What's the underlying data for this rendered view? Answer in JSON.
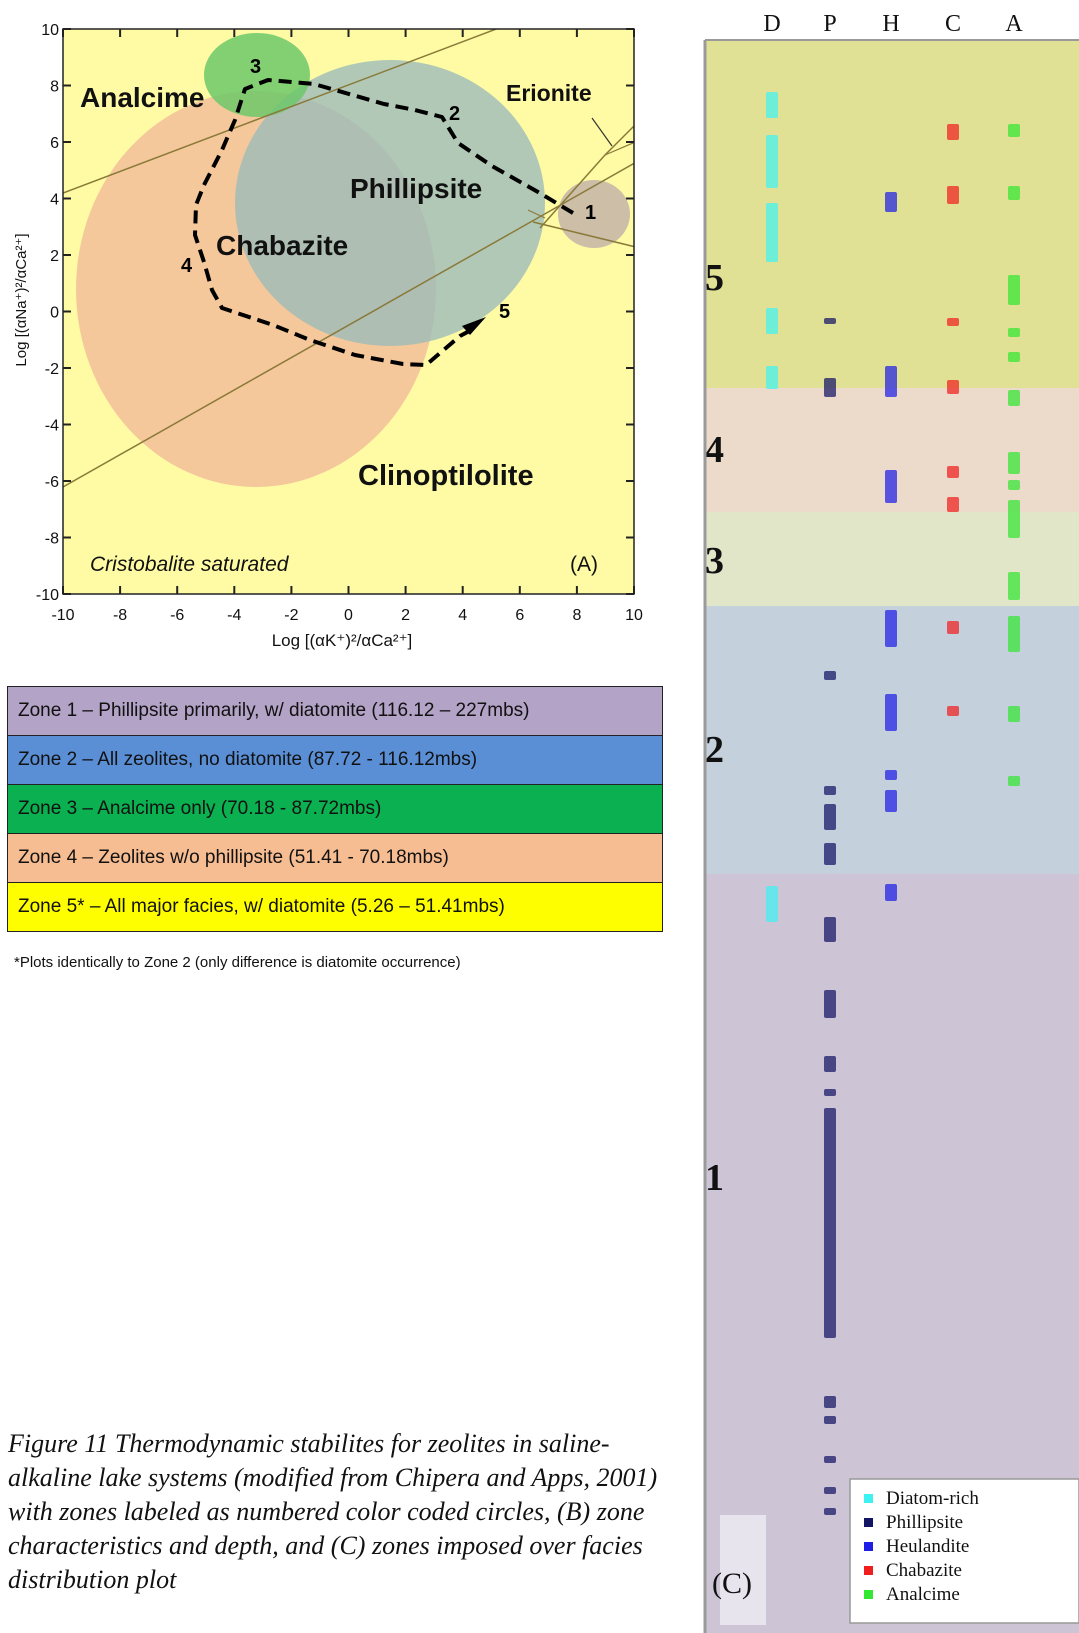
{
  "panel_a": {
    "x_axis_label": "Log [(αK⁺)²/αCa²⁺]",
    "y_axis_label": "Log [(αNa⁺)²/αCa²⁺]",
    "x_ticks": [
      "-10",
      "-8",
      "-6",
      "-4",
      "-2",
      "0",
      "2",
      "4",
      "6",
      "8",
      "10"
    ],
    "y_ticks": [
      "10",
      "8",
      "6",
      "4",
      "2",
      "0",
      "-2",
      "-4",
      "-6",
      "-8",
      "-10"
    ],
    "field_labels": {
      "analcime": "Analcime",
      "erionite": "Erionite",
      "phillipsite": "Phillipsite",
      "chabazite": "Chabazite",
      "clinoptilolite": "Clinoptilolite"
    },
    "saturation_label": "Cristobalite saturated",
    "panel_label": "(A)",
    "path_markers": [
      "1",
      "2",
      "3",
      "4",
      "5"
    ],
    "colors": {
      "background": "#fefba4",
      "analcime_circle": "#6cc86a",
      "phillipsite_circle": "#9fbcb8",
      "chabazite_circle": "#f5c89b",
      "erionite_circle": "#cdbea8",
      "boundary_line": "#8a7a3a"
    }
  },
  "zone_table": {
    "rows": [
      {
        "text": "Zone 1 – Phillipsite primarily, w/ diatomite (116.12 – 227mbs)",
        "color": "#b3a3c6"
      },
      {
        "text": "Zone 2 – All zeolites, no diatomite (87.72 - 116.12mbs)",
        "color": "#5a8fd6"
      },
      {
        "text": "Zone 3 – Analcime only (70.18 - 87.72mbs)",
        "color": "#0bb050"
      },
      {
        "text": "Zone 4 – Zeolites w/o phillipsite (51.41 - 70.18mbs)",
        "color": "#f7bd92"
      },
      {
        "text": "Zone 5* – All major facies, w/ diatomite (5.26 – 51.41mbs)",
        "color": "#fefe00"
      }
    ],
    "footnote": "*Plots identically to Zone 2 (only difference is diatomite occurrence)"
  },
  "caption": "Figure 11 Thermodynamic stabilites for zeolites in saline-alkaline lake systems (modified from Chipera and Apps, 2001) with zones labeled as numbered color coded circles, (B) zone characteristics and depth, and (C) zones imposed over facies distribution plot",
  "panel_c": {
    "columns": [
      "D",
      "P",
      "H",
      "C",
      "A"
    ],
    "zones": [
      {
        "label": "5",
        "color": "#e1e196"
      },
      {
        "label": "4",
        "color": "#ecdbca"
      },
      {
        "label": "3",
        "color": "#e2e6c8"
      },
      {
        "label": "2",
        "color": "#c4d0dc"
      },
      {
        "label": "1",
        "color": "#cdc5d5"
      }
    ],
    "panel_label": "(C)",
    "legend": [
      {
        "label": "Diatom-rich",
        "color": "#3ff2f2"
      },
      {
        "label": "Phillipsite",
        "color": "#141465"
      },
      {
        "label": "Heulandite",
        "color": "#1e1ee6"
      },
      {
        "label": "Chabazite",
        "color": "#f01e1e"
      },
      {
        "label": "Analcime",
        "color": "#32e632"
      }
    ]
  }
}
